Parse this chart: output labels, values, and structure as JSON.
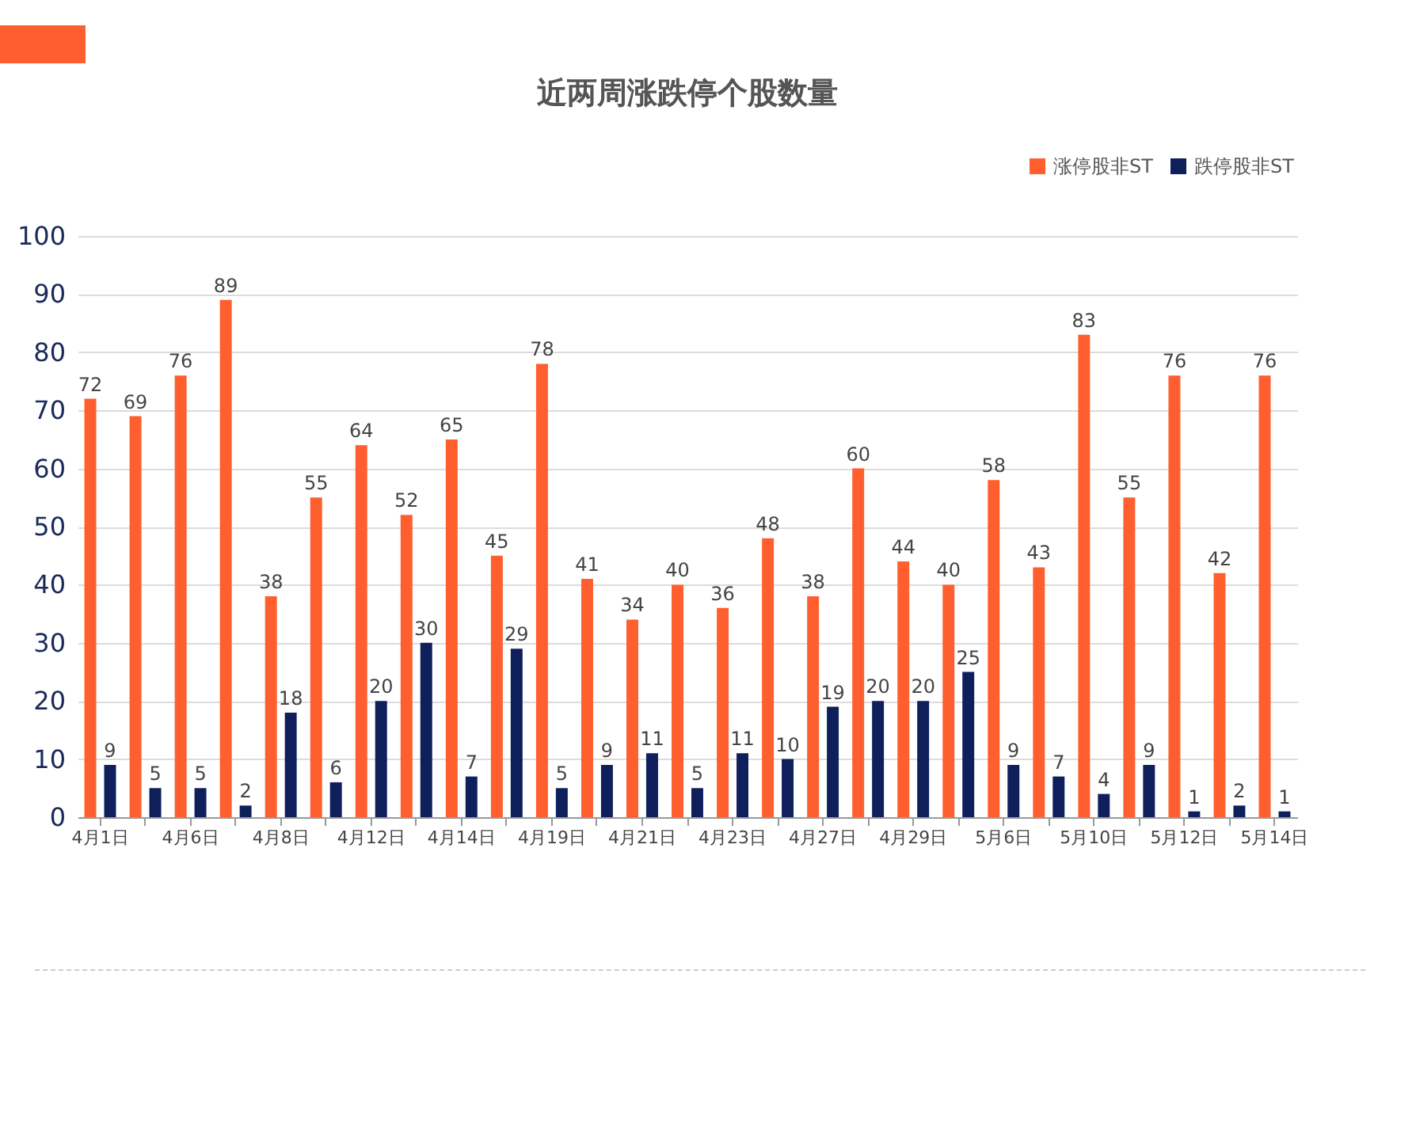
{
  "chart_data": {
    "type": "bar",
    "title": "近两周涨跌停个股数量",
    "categories": [
      "4月1日",
      null,
      "4月6日",
      null,
      "4月8日",
      null,
      "4月12日",
      null,
      "4月14日",
      null,
      "4月19日",
      null,
      "4月21日",
      null,
      "4月23日",
      null,
      "4月27日",
      null,
      "4月29日",
      null,
      "5月6日",
      null,
      "5月10日",
      null,
      "5月12日",
      null,
      "5月14日"
    ],
    "series": [
      {
        "name": "涨停股非ST",
        "color": "#ff5f2e",
        "values": [
          72,
          69,
          76,
          89,
          38,
          55,
          64,
          52,
          65,
          45,
          78,
          41,
          34,
          40,
          36,
          48,
          38,
          60,
          44,
          40,
          58,
          43,
          83,
          55,
          76,
          42,
          76
        ]
      },
      {
        "name": "跌停股非ST",
        "color": "#0f1f5c",
        "values": [
          9,
          5,
          5,
          2,
          18,
          6,
          20,
          30,
          7,
          29,
          5,
          9,
          11,
          5,
          11,
          10,
          19,
          20,
          20,
          25,
          9,
          7,
          4,
          9,
          1,
          2,
          1
        ]
      }
    ],
    "ylim": [
      0,
      100
    ],
    "yticks": [
      0,
      10,
      20,
      30,
      40,
      50,
      60,
      70,
      80,
      90,
      100
    ],
    "grid": "y",
    "legend": "top right",
    "data_labels": true
  }
}
